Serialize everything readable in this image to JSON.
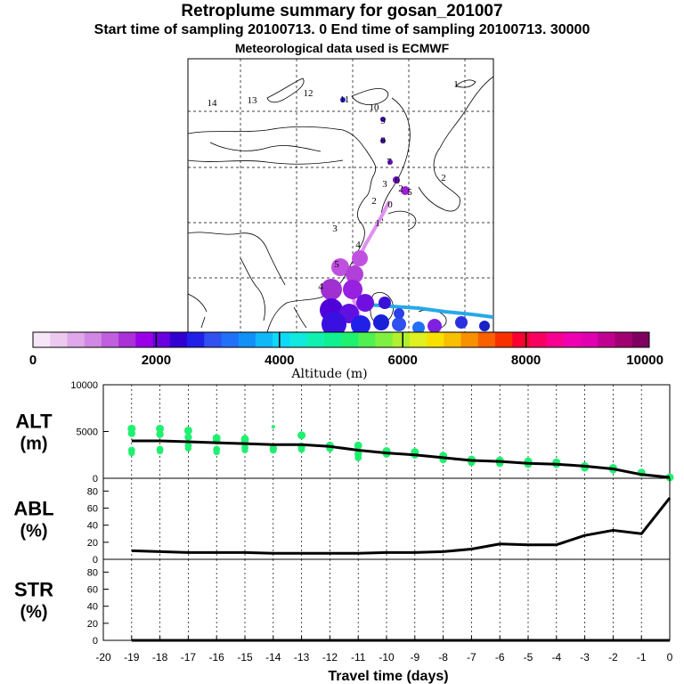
{
  "header": {
    "title": "Retroplume summary for gosan_201007",
    "subtitle": "Start time of sampling 20100713.     0     End time of sampling 20100713. 30000",
    "met_line": "Meteorological data used is ECMWF"
  },
  "map": {
    "trajectory_labels": [
      "14",
      "13",
      "12",
      "11",
      "10",
      "9",
      "8",
      "7",
      "6",
      "5",
      "4",
      "3",
      "2",
      "1",
      "0"
    ],
    "other_labels": [
      "2",
      "1",
      "2",
      "3",
      "4",
      "5"
    ],
    "colors": {
      "trajectory": "#c040e0",
      "marine": "#28a8e8",
      "land": "#ffffff"
    }
  },
  "colorbar": {
    "colors": [
      "#f6e6f8",
      "#eccaf0",
      "#e0a8ea",
      "#d088e4",
      "#c060de",
      "#aa30d8",
      "#9a00e8",
      "#6a00e0",
      "#3000d0",
      "#2020e8",
      "#3050f0",
      "#2070f8",
      "#1090f8",
      "#10b8f8",
      "#10d8f8",
      "#10e8e0",
      "#10f0b0",
      "#10f090",
      "#20f070",
      "#50f050",
      "#80f040",
      "#b0f030",
      "#e0f020",
      "#f8e000",
      "#f8c000",
      "#f89000",
      "#f86000",
      "#f83000",
      "#f80030",
      "#f80060",
      "#f80090",
      "#f000b0",
      "#e000b0",
      "#c00090",
      "#a00070",
      "#800060"
    ],
    "tick_labels": [
      "0",
      "2000",
      "4000",
      "6000",
      "8000",
      "10000"
    ],
    "label": "Altitude (m)"
  },
  "chart_data": [
    {
      "type": "line",
      "panel": "ALT",
      "ylabel": "ALT\n(m)",
      "ylim": [
        0,
        10000
      ],
      "ytick_labels": [
        "10000",
        "5000",
        "0"
      ],
      "x": [
        -19,
        -18,
        -17,
        -16,
        -15,
        -14,
        -13,
        -12,
        -11,
        -10,
        -9,
        -8,
        -7,
        -6,
        -5,
        -4,
        -3,
        -2,
        -1,
        0
      ],
      "values": [
        4000,
        4000,
        3900,
        3800,
        3700,
        3600,
        3600,
        3400,
        3000,
        2700,
        2500,
        2200,
        1900,
        1800,
        1600,
        1500,
        1300,
        1000,
        400,
        100
      ],
      "scatter": [
        {
          "x": -19,
          "values": [
            5300,
            4800,
            3000,
            2700
          ]
        },
        {
          "x": -18,
          "values": [
            5300,
            4700,
            3100,
            2900
          ]
        },
        {
          "x": -17,
          "values": [
            5100,
            4400,
            3500,
            3200
          ]
        },
        {
          "x": -16,
          "values": [
            4300,
            4000,
            3100,
            2800
          ]
        },
        {
          "x": -15,
          "values": [
            4200,
            3900,
            3300,
            3000
          ]
        },
        {
          "x": -14,
          "values": [
            5500,
            3200,
            3000
          ]
        },
        {
          "x": -13,
          "values": [
            4600,
            3400,
            3100
          ]
        },
        {
          "x": -12,
          "values": [
            3500,
            3200
          ]
        },
        {
          "x": -11,
          "values": [
            3500,
            2600,
            2200
          ]
        },
        {
          "x": -10,
          "values": [
            2900,
            2600
          ]
        },
        {
          "x": -9,
          "values": [
            2800,
            2500
          ]
        },
        {
          "x": -8,
          "values": [
            2400,
            2000
          ]
        },
        {
          "x": -7,
          "values": [
            2000,
            1700
          ]
        },
        {
          "x": -6,
          "values": [
            1900,
            1600
          ]
        },
        {
          "x": -5,
          "values": [
            1800,
            1500
          ]
        },
        {
          "x": -4,
          "values": [
            1700,
            1500
          ]
        },
        {
          "x": -3,
          "values": [
            1300,
            1100
          ]
        },
        {
          "x": -2,
          "values": [
            1100,
            900
          ]
        },
        {
          "x": -1,
          "values": [
            600
          ]
        },
        {
          "x": 0,
          "values": [
            100
          ]
        }
      ]
    },
    {
      "type": "line",
      "panel": "ABL",
      "ylabel": "ABL\n(%)",
      "ylim": [
        0,
        95
      ],
      "ytick_labels": [
        "80",
        "60",
        "40",
        "20",
        "0"
      ],
      "x": [
        -19,
        -18,
        -17,
        -16,
        -15,
        -14,
        -13,
        -12,
        -11,
        -10,
        -9,
        -8,
        -7,
        -6,
        -5,
        -4,
        -3,
        -2,
        -1,
        0
      ],
      "values": [
        10,
        9,
        8,
        8,
        8,
        7,
        7,
        7,
        7,
        8,
        8,
        9,
        12,
        18,
        17,
        17,
        28,
        34,
        30,
        72
      ]
    },
    {
      "type": "line",
      "panel": "STR",
      "ylabel": "STR\n(%)",
      "ylim": [
        0,
        95
      ],
      "ytick_labels": [
        "80",
        "60",
        "40",
        "20",
        "0"
      ],
      "x": [
        -19,
        -18,
        -17,
        -16,
        -15,
        -14,
        -13,
        -12,
        -11,
        -10,
        -9,
        -8,
        -7,
        -6,
        -5,
        -4,
        -3,
        -2,
        -1,
        0
      ],
      "values": [
        0,
        0,
        0,
        0,
        0,
        0,
        0,
        0,
        0,
        0,
        0,
        0,
        0,
        0,
        0,
        0,
        0,
        0,
        0,
        0
      ]
    }
  ],
  "xaxis": {
    "tick_labels": [
      "-20",
      "-19",
      "-18",
      "-17",
      "-16",
      "-15",
      "-14",
      "-13",
      "-12",
      "-11",
      "-10",
      "-9",
      "-8",
      "-7",
      "-6",
      "-5",
      "-4",
      "-3",
      "-2",
      "-1",
      "0"
    ],
    "label": "Travel time (days)"
  }
}
